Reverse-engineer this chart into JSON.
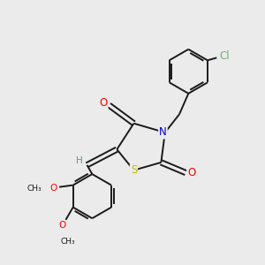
{
  "background_color": "#ebebeb",
  "bond_color": "#1a1a1a",
  "atom_colors": {
    "O": "#ff0000",
    "N": "#0000cc",
    "S": "#bbbb00",
    "Cl": "#66bb66",
    "H": "#559999",
    "C": "#1a1a1a"
  },
  "figsize": [
    3.0,
    3.0
  ],
  "dpi": 100,
  "lw": 1.4,
  "fs": 8.5
}
